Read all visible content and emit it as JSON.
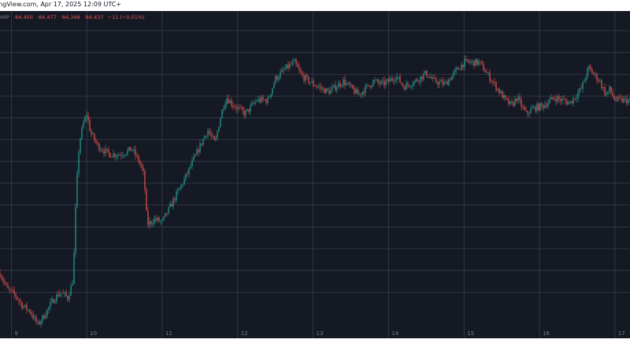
{
  "header": {
    "text": "ingView.com, Apr 17, 2025 12:09 UTC+"
  },
  "ohlc": {
    "symbol_fragment": "AMP",
    "open": "·84,450",
    "high": "·84,477",
    "low": "·84,348",
    "close": "·84,437",
    "change": "−11 (−0.01%)"
  },
  "colors": {
    "background": "#151924",
    "grid": "#3a3e49",
    "up": "#26a69a",
    "down": "#ef5350",
    "axis_text": "#787b86"
  },
  "chart_data": {
    "type": "candlestick",
    "x_tick_labels": [
      "9",
      "10",
      "11",
      "12",
      "13",
      "14",
      "15",
      "16",
      "17"
    ],
    "x_range": [
      8.85,
      17.2
    ],
    "y_range": [
      74800,
      86900
    ],
    "horizontal_gridlines": 13,
    "grid": true,
    "trend": {
      "x": [
        8.85,
        8.95,
        9.05,
        9.15,
        9.25,
        9.35,
        9.45,
        9.55,
        9.65,
        9.75,
        9.82,
        9.86,
        9.9,
        9.95,
        10.0,
        10.05,
        10.15,
        10.3,
        10.45,
        10.6,
        10.7,
        10.76,
        10.8,
        10.9,
        11.0,
        11.15,
        11.3,
        11.45,
        11.6,
        11.7,
        11.75,
        11.8,
        11.85,
        11.95,
        12.1,
        12.25,
        12.4,
        12.5,
        12.65,
        12.75,
        12.85,
        13.0,
        13.2,
        13.4,
        13.6,
        13.8,
        13.92,
        14.0,
        14.1,
        14.2,
        14.35,
        14.5,
        14.6,
        14.75,
        14.9,
        15.0,
        15.2,
        15.4,
        15.55,
        15.63,
        15.7,
        15.82,
        15.92,
        16.05,
        16.2,
        16.4,
        16.55,
        16.65,
        16.8,
        16.88,
        16.93,
        17.0,
        17.2
      ],
      "close": [
        77200,
        76600,
        76400,
        76000,
        75800,
        75300,
        75700,
        76200,
        76500,
        76300,
        77000,
        80200,
        82000,
        82700,
        83100,
        82400,
        81900,
        81600,
        81600,
        81800,
        81300,
        80800,
        79000,
        79200,
        79100,
        79900,
        80700,
        81600,
        82500,
        82000,
        82700,
        83300,
        83700,
        83400,
        83100,
        83600,
        83600,
        84400,
        84800,
        85000,
        84500,
        84200,
        83900,
        84300,
        83800,
        84300,
        84200,
        84300,
        84500,
        84100,
        84300,
        84600,
        84300,
        84200,
        84700,
        85000,
        85000,
        84200,
        83600,
        83400,
        83700,
        83100,
        83300,
        83400,
        83700,
        83500,
        84000,
        84800,
        84300,
        83800,
        84000,
        83600,
        83600
      ]
    }
  }
}
